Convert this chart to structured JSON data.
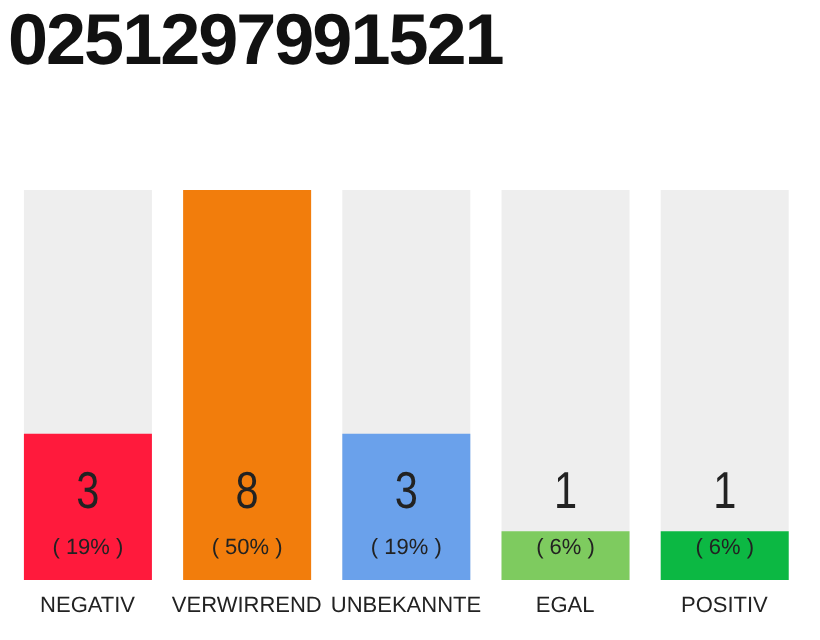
{
  "chart_data": {
    "type": "bar",
    "title": "0251297991521",
    "categories": [
      "NEGATIV",
      "VERWIRREND",
      "UNBEKANNTE",
      "EGAL",
      "POSITIV"
    ],
    "values": [
      3,
      8,
      3,
      1,
      1
    ],
    "colors": [
      "#ff1a3c",
      "#f27d0c",
      "#6aa1eb",
      "#7ecb5f",
      "#0cb843"
    ],
    "data_labels": true,
    "annotations": [
      "( 19% )",
      "( 50% )",
      "( 19% )",
      "( 6% )",
      "( 6% )"
    ]
  }
}
